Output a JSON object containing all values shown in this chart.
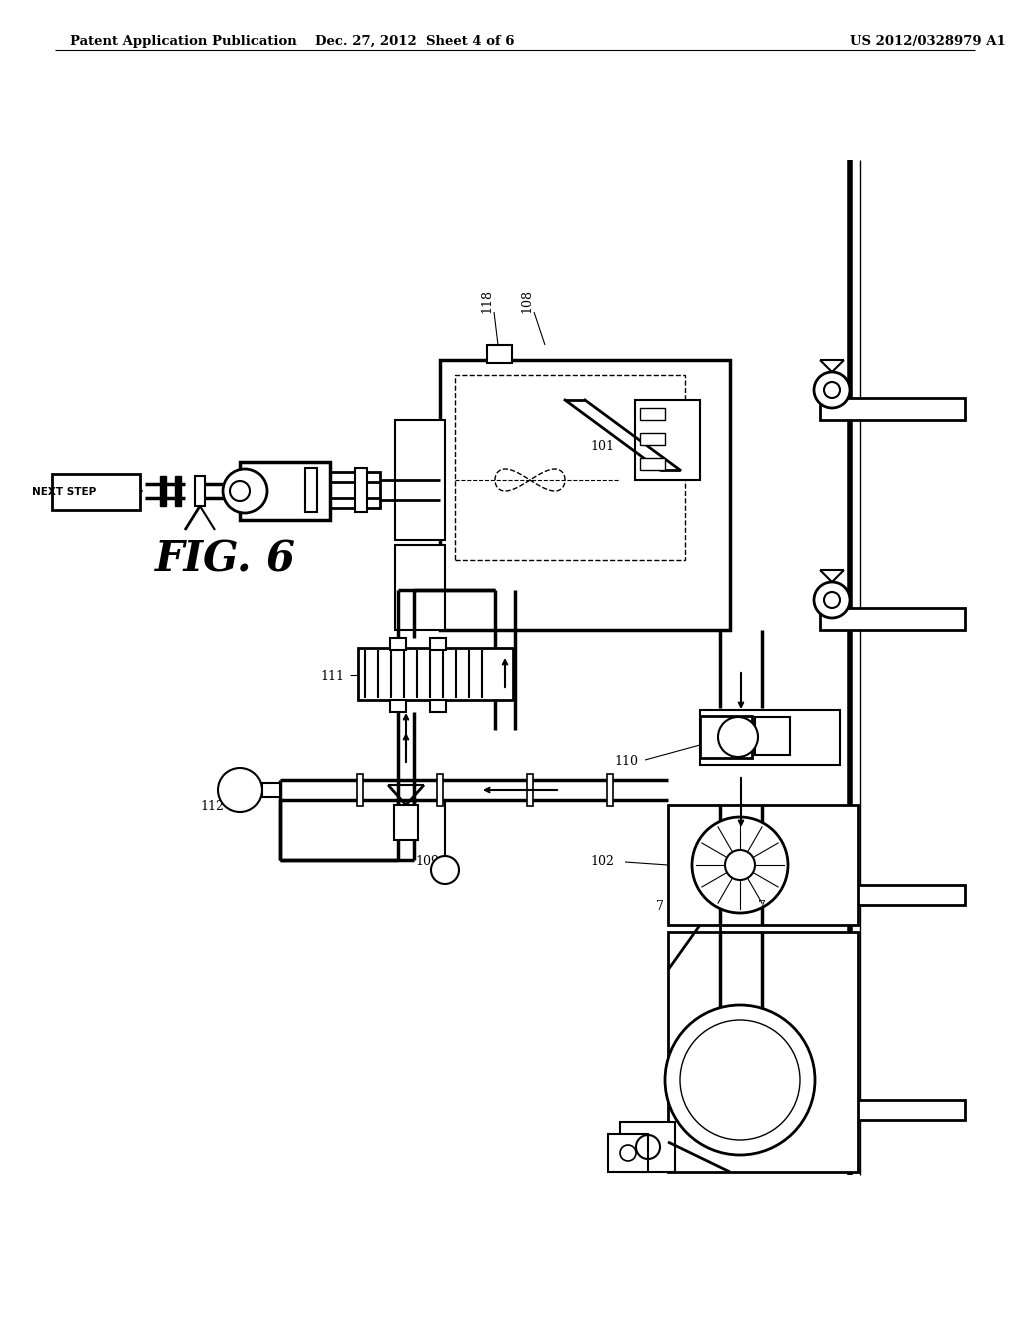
{
  "header_left": "Patent Application Publication",
  "header_center": "Dec. 27, 2012  Sheet 4 of 6",
  "header_right": "US 2012/0328979 A1",
  "fig_label": "FIG. 6",
  "background_color": "#ffffff",
  "line_color": "#000000"
}
